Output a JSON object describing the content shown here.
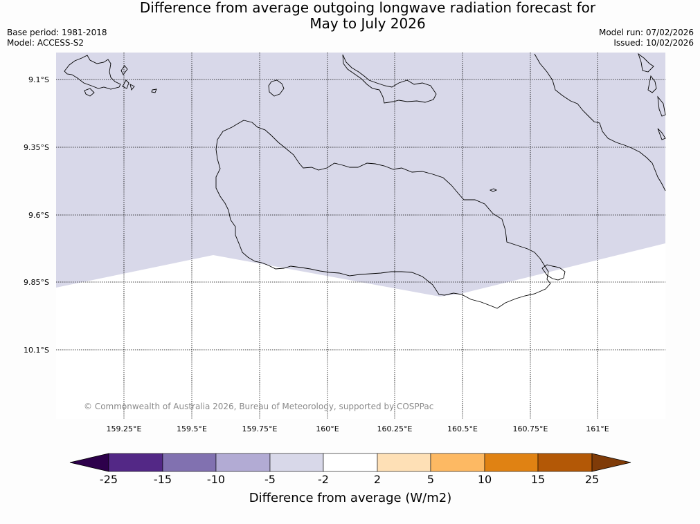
{
  "header": {
    "title_line1": "Difference from average outgoing longwave radiation forecast for",
    "title_line2": "May to July 2026",
    "base_period": "Base period: 1981-2018",
    "model": "Model: ACCESS-S2",
    "model_run": "Model run: 07/02/2026",
    "issued": "Issued: 10/02/2026"
  },
  "map": {
    "copyright": "© Commonwealth of Australia 2026, Bureau of Meteorology, supported by COSPPac",
    "lat_labels": [
      "9.1°S",
      "9.35°S",
      "9.6°S",
      "9.85°S",
      "10.1°S"
    ],
    "lon_labels": [
      "159.25°E",
      "159.5°E",
      "159.75°E",
      "160°E",
      "160.25°E",
      "160.5°E",
      "160.75°E",
      "161°E"
    ],
    "shaded_category": "-5 to -2",
    "shade_color": "#d8d8e9",
    "land_outline_color": "#000000"
  },
  "colorbar": {
    "tick_labels": [
      "-25",
      "-15",
      "-10",
      "-5",
      "-2",
      "2",
      "5",
      "10",
      "15",
      "25"
    ],
    "colors": [
      "#532886",
      "#8171b0",
      "#b2abd4",
      "#d8d8e9",
      "#ffffff",
      "#fee0b6",
      "#fdb963",
      "#e08213",
      "#b35806"
    ],
    "extend_low_color": "#2d004b",
    "extend_high_color": "#7f3b08",
    "label": "Difference from average (W/m2)"
  }
}
